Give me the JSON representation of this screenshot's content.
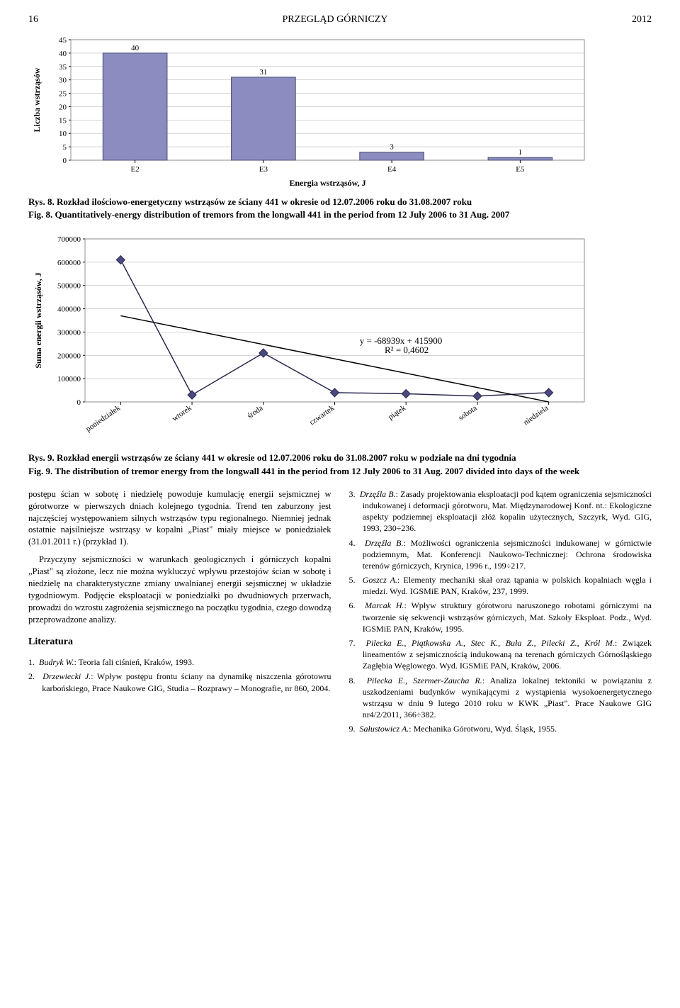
{
  "header": {
    "page": "16",
    "title": "PRZEGLĄD GÓRNICZY",
    "year": "2012"
  },
  "chart1": {
    "type": "bar",
    "ylabel": "Liczba wstrząsów",
    "xlabel": "Energia wstrząsów, J",
    "categories": [
      "E2",
      "E3",
      "E4",
      "E5"
    ],
    "values": [
      40,
      31,
      3,
      1
    ],
    "labels": [
      "40",
      "31",
      "3",
      "1"
    ],
    "bar_color": "#8c8cc0",
    "border_color": "#4a4a70",
    "ylim": [
      0,
      45
    ],
    "ytick_step": 5,
    "yticks": [
      0,
      5,
      10,
      15,
      20,
      25,
      30,
      35,
      40,
      45
    ],
    "background_color": "#ffffff",
    "grid_color": "#bbbbbb",
    "bar_width_ratio": 0.5,
    "label_fontsize": 11,
    "axis_fontsize": 12,
    "caption_pl": "Rys. 8. Rozkład ilościowo-energetyczny wstrząsów ze ściany 441 w okresie od 12.07.2006 roku do 31.08.2007 roku",
    "caption_en": "Fig. 8. Quantitatively-energy distribution of tremors from the longwall 441 in the period from 12 July 2006 to 31 Aug. 2007"
  },
  "chart2": {
    "type": "line",
    "ylabel": "Suma energii wstrząsów, J",
    "categories": [
      "poniedziałek",
      "wtorek",
      "środa",
      "czwartek",
      "piątek",
      "sobota",
      "niedziela"
    ],
    "values": [
      610000,
      30000,
      210000,
      40000,
      35000,
      25000,
      40000
    ],
    "equation": "y = -68939x + 415900",
    "r2": "R² = 0,4602",
    "marker_color": "#4a4a80",
    "line_color": "#2a2a50",
    "trend_color": "#000000",
    "trend_start": 370000,
    "trend_end": -18000,
    "ylim": [
      0,
      700000
    ],
    "ytick_step": 100000,
    "yticks": [
      0,
      100000,
      200000,
      300000,
      400000,
      500000,
      600000,
      700000
    ],
    "background_color": "#ffffff",
    "grid_color": "#bbbbbb",
    "marker_size": 6,
    "caption_pl": "Rys. 9. Rozkład energii wstrząsów ze ściany 441 w okresie od 12.07.2006 roku do 31.08.2007 roku w podziale na dni tygodnia",
    "caption_en": "Fig. 9. The distribution of tremor energy from the longwall 441 in the period from 12 July 2006 to 31 Aug. 2007 divided into days of the week"
  },
  "body": {
    "p1": "postępu ścian w sobotę i niedzielę powoduje kumulację energii sejsmicznej w górotworze w pierwszych dniach kolejnego tygodnia. Trend ten zaburzony jest najczęściej występowaniem silnych wstrząsów typu regionalnego. Niemniej jednak ostatnie najsilniejsze wstrząsy w kopalni „Piast\" miały miejsce w poniedziałek (31.01.2011 r.) (przykład 1).",
    "p2": "Przyczyny sejsmiczności w warunkach geologicznych i górniczych kopalni „Piast\" są złożone, lecz nie można wykluczyć wpływu przestojów ścian w sobotę i niedzielę na charakterystyczne zmiany uwalnianej energii sejsmicznej w układzie tygodniowym. Podjęcie eksploatacji w poniedziałki po dwudniowych przerwach, prowadzi do wzrostu zagrożenia sejsmicznego na początku tygodnia, czego dowodzą przeprowadzone analizy."
  },
  "literature": {
    "heading": "Literatura",
    "refs": [
      {
        "n": "1.",
        "a": "Budryk W.",
        "t": ": Teoria fali ciśnień, Kraków, 1993."
      },
      {
        "n": "2.",
        "a": "Drzewiecki J.",
        "t": ": Wpływ postępu frontu ściany na dynamikę niszczenia górotowru karbońskiego, Prace Naukowe GIG, Studia – Rozprawy – Monografie, nr 860, 2004."
      },
      {
        "n": "3.",
        "a": "Drzęźla B.",
        "t": ": Zasady projektowania eksploatacji pod kątem ograniczenia sejsmiczności indukowanej i deformacji górotworu, Mat. Międzynarodowej Konf. nt.: Ekologiczne aspekty podziemnej eksploatacji złóż kopalin użytecznych, Szczyrk, Wyd. GIG, 1993, 230÷236."
      },
      {
        "n": "4.",
        "a": "Drzęźla B.",
        "t": ": Możliwości ograniczenia sejsmiczności indukowanej w górnictwie podziemnym, Mat. Konferencji Naukowo-Technicznej: Ochrona środowiska terenów górniczych, Krynica, 1996 r., 199÷217."
      },
      {
        "n": "5.",
        "a": "Goszcz A.",
        "t": ": Elementy mechaniki skał oraz tąpania w polskich kopalniach węgla i miedzi. Wyd. IGSMiE PAN, Kraków, 237, 1999."
      },
      {
        "n": "6.",
        "a": "Marcak H.",
        "t": ": Wpływ struktury górotworu naruszonego robotami górniczymi na tworzenie się sekwencji wstrząsów górniczych, Mat. Szkoły Eksploat. Podz., Wyd. IGSMiE PAN, Kraków, 1995."
      },
      {
        "n": "7.",
        "a": "Pilecka E., Piątkowska A., Stec K., Buła Z., Pilecki Z., Król M.",
        "t": ": Związek lineamentów z sejsmicznością indukowaną na terenach górniczych Górnośląskiego Zagłębia Węglowego. Wyd. IGSMiE PAN, Kraków, 2006."
      },
      {
        "n": "8.",
        "a": "Pilecka E., Szermer-Zaucha R.",
        "t": ": Analiza lokalnej tektoniki w powiązaniu z uszkodzeniami budynków wynikającymi z wystąpienia wysokoenergetycznego wstrząsu w dniu 9 lutego 2010 roku w KWK „Piast\". Prace Naukowe GIG nr4/2/2011, 366÷382."
      },
      {
        "n": "9.",
        "a": "Sałustowicz A.",
        "t": ": Mechanika Górotworu, Wyd. Śląsk, 1955."
      }
    ]
  }
}
